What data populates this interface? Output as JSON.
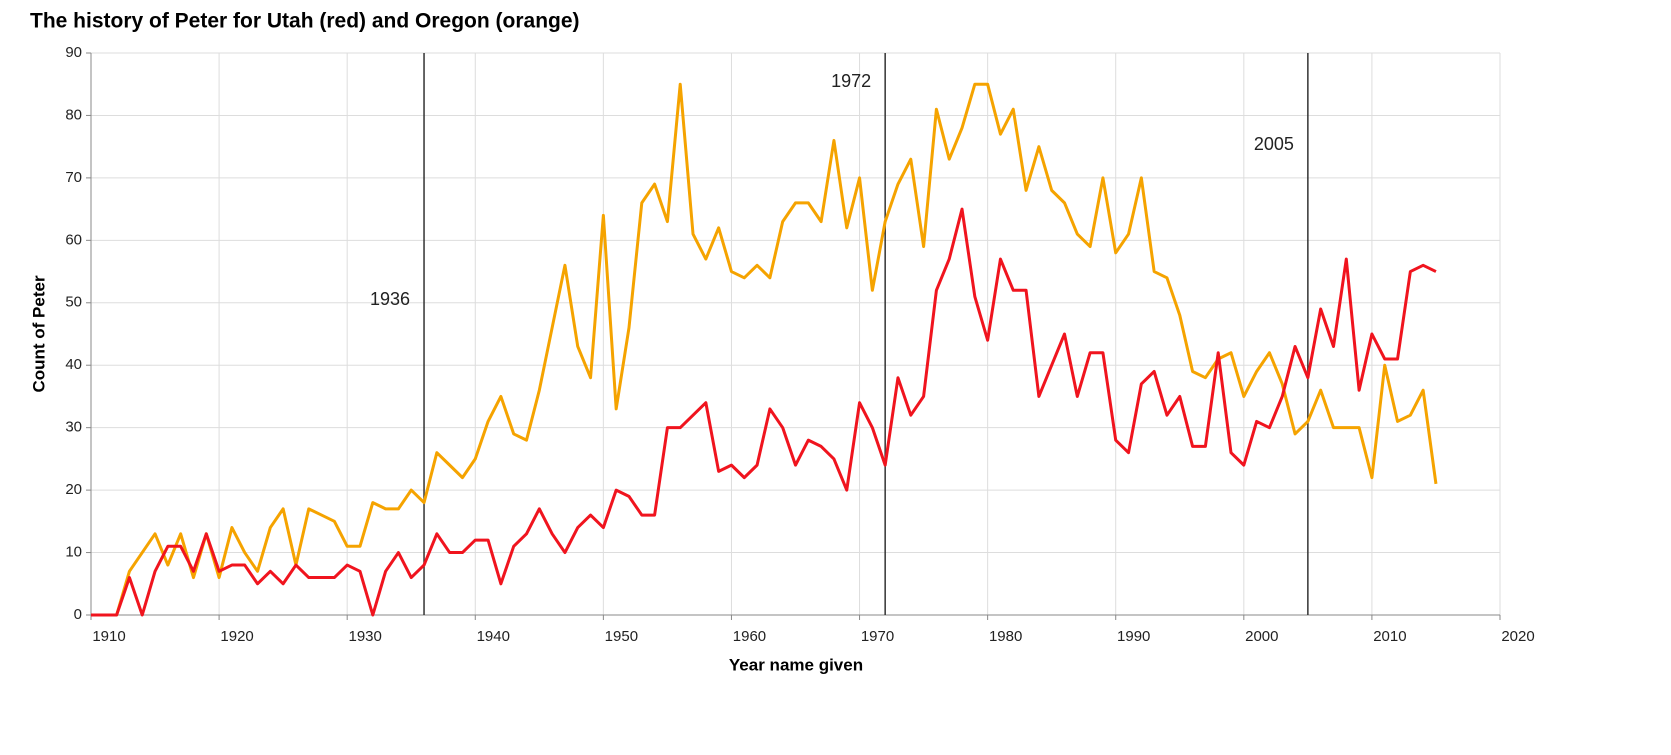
{
  "chart_data": {
    "type": "line",
    "title": "The history of Peter for Utah (red) and Oregon (orange)",
    "x_label": "Year name given",
    "y_label": "Count of Peter",
    "x": [
      1910,
      1911,
      1912,
      1913,
      1914,
      1915,
      1916,
      1917,
      1918,
      1919,
      1920,
      1921,
      1922,
      1923,
      1924,
      1925,
      1926,
      1927,
      1928,
      1929,
      1930,
      1931,
      1932,
      1933,
      1934,
      1935,
      1936,
      1937,
      1938,
      1939,
      1940,
      1941,
      1942,
      1943,
      1944,
      1945,
      1946,
      1947,
      1948,
      1949,
      1950,
      1951,
      1952,
      1953,
      1954,
      1955,
      1956,
      1957,
      1958,
      1959,
      1960,
      1961,
      1962,
      1963,
      1964,
      1965,
      1966,
      1967,
      1968,
      1969,
      1970,
      1971,
      1972,
      1973,
      1974,
      1975,
      1976,
      1977,
      1978,
      1979,
      1980,
      1981,
      1982,
      1983,
      1984,
      1985,
      1986,
      1987,
      1988,
      1989,
      1990,
      1991,
      1992,
      1993,
      1994,
      1995,
      1996,
      1997,
      1998,
      1999,
      2000,
      2001,
      2002,
      2003,
      2004,
      2005,
      2006,
      2007,
      2008,
      2009,
      2010,
      2011,
      2012,
      2013,
      2014,
      2015
    ],
    "series": [
      {
        "color": "#f5a300",
        "values": [
          0,
          0,
          0,
          7,
          10,
          13,
          8,
          13,
          6,
          13,
          6,
          14,
          10,
          7,
          14,
          17,
          8,
          17,
          16,
          15,
          11,
          11,
          18,
          17,
          17,
          20,
          18,
          26,
          24,
          22,
          25,
          31,
          35,
          29,
          28,
          36,
          46,
          56,
          43,
          38,
          64,
          33,
          46,
          66,
          69,
          63,
          85,
          61,
          57,
          62,
          55,
          54,
          56,
          54,
          63,
          66,
          66,
          63,
          76,
          62,
          70,
          52,
          63,
          69,
          73,
          59,
          81,
          73,
          78,
          85,
          85,
          77,
          81,
          68,
          75,
          68,
          66,
          61,
          59,
          70,
          58,
          61,
          70,
          55,
          54,
          48,
          39,
          38,
          41,
          42,
          35,
          39,
          42,
          37,
          29,
          31,
          36,
          30,
          30,
          30,
          22,
          40,
          31,
          32,
          36,
          21
        ]
      },
      {
        "color": "#f0141e",
        "values": [
          0,
          0,
          0,
          6,
          0,
          7,
          11,
          11,
          7,
          13,
          7,
          8,
          8,
          5,
          7,
          5,
          8,
          6,
          6,
          6,
          8,
          7,
          0,
          7,
          10,
          6,
          8,
          13,
          10,
          10,
          12,
          12,
          5,
          11,
          13,
          17,
          13,
          10,
          14,
          16,
          14,
          20,
          19,
          16,
          16,
          30,
          30,
          32,
          34,
          23,
          24,
          22,
          24,
          33,
          30,
          24,
          28,
          27,
          25,
          20,
          34,
          30,
          24,
          38,
          32,
          35,
          52,
          57,
          65,
          51,
          44,
          57,
          52,
          52,
          35,
          40,
          45,
          35,
          42,
          42,
          28,
          26,
          37,
          39,
          32,
          35,
          27,
          27,
          42,
          26,
          24,
          31,
          30,
          35,
          43,
          38,
          49,
          43,
          57,
          36,
          45,
          41,
          41,
          55,
          56,
          55
        ]
      }
    ],
    "annotations": [
      {
        "x": 1936,
        "label": "1936"
      },
      {
        "x": 1972,
        "label": "1972"
      },
      {
        "x": 2005,
        "label": "2005"
      }
    ],
    "xlim": [
      1910,
      2020
    ],
    "xticks": [
      1910,
      1920,
      1930,
      1940,
      1950,
      1960,
      1970,
      1980,
      1990,
      2000,
      2010,
      2020
    ],
    "ylim": [
      0,
      90
    ],
    "yticks": [
      0,
      10,
      20,
      30,
      40,
      50,
      60,
      70,
      80,
      90
    ],
    "grid": true
  }
}
